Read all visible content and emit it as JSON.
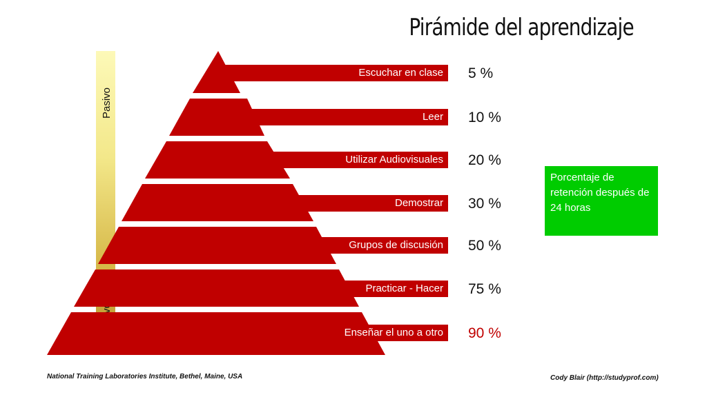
{
  "title": "Pirámide del aprendizaje",
  "scale": {
    "top": "Pasivo",
    "bottom": "Activo"
  },
  "levels": [
    {
      "label": "Escuchar en clase",
      "percent": "5 %"
    },
    {
      "label": "Leer",
      "percent": "10 %"
    },
    {
      "label": "Utilizar Audiovisuales",
      "percent": "20 %"
    },
    {
      "label": "Demostrar",
      "percent": "30 %"
    },
    {
      "label": "Grupos de discusión",
      "percent": "50 %"
    },
    {
      "label": "Practicar - Hacer",
      "percent": "75 %"
    },
    {
      "label": "Enseñar el uno a otro",
      "percent": "90 %"
    }
  ],
  "legend": "Porcentaje de retención después de 24 horas",
  "footer": {
    "left": "National Training Laboratories Institute, Bethel, Maine, USA",
    "right": "Cody Blair (http://studyprof.com)"
  },
  "colors": {
    "pyramid": "#c00000",
    "legend_box": "#00cc00",
    "highlight_percent": "#c00000"
  }
}
